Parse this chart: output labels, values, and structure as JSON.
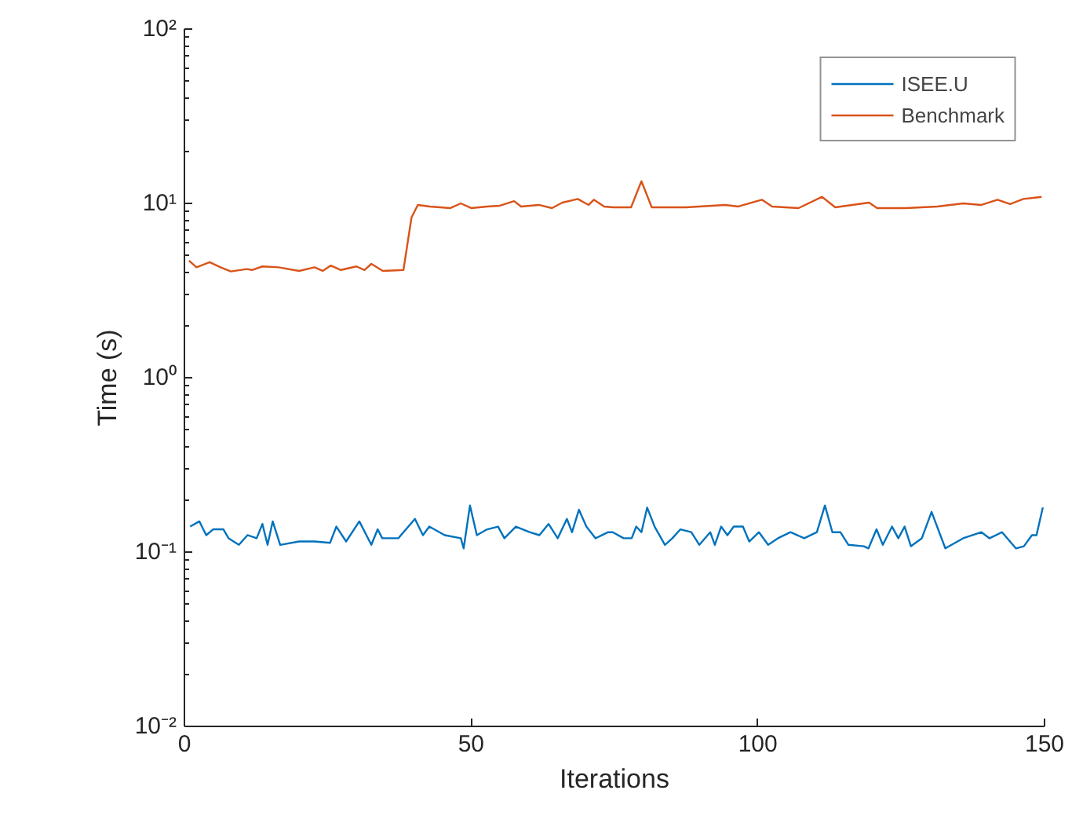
{
  "chart_data": {
    "type": "line",
    "xlabel": "Iterations",
    "ylabel": "Time (s)",
    "log": "y",
    "grid": false,
    "legend": "top right",
    "marker": "none",
    "line_style": "solid",
    "xlim": [
      0,
      150
    ],
    "xticks": [
      0,
      50,
      100,
      150
    ],
    "ylim": [
      0.01,
      100
    ],
    "yticks": [
      {
        "value": 0.01,
        "label": "10⁻²"
      },
      {
        "value": 0.1,
        "label": "10⁻¹"
      },
      {
        "value": 1,
        "label": "10⁰"
      },
      {
        "value": 10,
        "label": "10¹"
      },
      {
        "value": 100,
        "label": "10²"
      }
    ],
    "series": [
      {
        "name": "ISEE.U",
        "color": "#0072bd",
        "x": [
          1,
          2.6,
          3.8,
          5,
          6.8,
          7.7,
          9.5,
          11,
          12.6,
          13.6,
          14.5,
          15.4,
          16.7,
          20,
          22.7,
          25.4,
          26.5,
          28.2,
          30.5,
          32.6,
          33.7,
          34.5,
          37.3,
          40.2,
          41.6,
          42.7,
          45.4,
          48.2,
          48.7,
          49.8,
          51,
          52.8,
          54.7,
          55.8,
          57.8,
          60.2,
          61.9,
          63.5,
          65.1,
          66.7,
          67.6,
          68.8,
          70.1,
          71.7,
          73.9,
          74.7,
          76.6,
          78,
          78.8,
          79.7,
          80.7,
          82,
          83.8,
          85.1,
          86.5,
          88.4,
          89.8,
          91.7,
          92.5,
          93.6,
          94.7,
          95.8,
          97.4,
          98.5,
          100.2,
          101.8,
          103.5,
          105.7,
          108.1,
          110.3,
          111.7,
          113,
          114.4,
          115.8,
          118.5,
          119.3,
          120.7,
          121.8,
          123.4,
          124.5,
          125.6,
          126.7,
          128.6,
          130.3,
          132.7,
          135.8,
          139,
          140.4,
          142.6,
          145,
          146.4,
          147.8,
          148.6,
          149.7
        ],
        "values": [
          0.14,
          0.15,
          0.125,
          0.135,
          0.135,
          0.12,
          0.11,
          0.125,
          0.12,
          0.145,
          0.11,
          0.15,
          0.11,
          0.115,
          0.115,
          0.113,
          0.14,
          0.115,
          0.15,
          0.11,
          0.135,
          0.12,
          0.12,
          0.155,
          0.125,
          0.14,
          0.125,
          0.12,
          0.105,
          0.185,
          0.125,
          0.135,
          0.14,
          0.12,
          0.14,
          0.13,
          0.125,
          0.145,
          0.12,
          0.155,
          0.13,
          0.175,
          0.14,
          0.12,
          0.13,
          0.13,
          0.12,
          0.12,
          0.14,
          0.13,
          0.18,
          0.14,
          0.11,
          0.12,
          0.135,
          0.13,
          0.11,
          0.13,
          0.11,
          0.14,
          0.125,
          0.14,
          0.14,
          0.115,
          0.13,
          0.11,
          0.12,
          0.13,
          0.12,
          0.13,
          0.185,
          0.13,
          0.13,
          0.11,
          0.108,
          0.105,
          0.135,
          0.11,
          0.14,
          0.12,
          0.14,
          0.108,
          0.12,
          0.17,
          0.105,
          0.12,
          0.13,
          0.12,
          0.13,
          0.105,
          0.108,
          0.125,
          0.125,
          0.18
        ]
      },
      {
        "name": "Benchmark",
        "color": "#d95319",
        "x": [
          0.8,
          2.1,
          4.4,
          6.3,
          8.1,
          10.9,
          11.8,
          13.6,
          16.4,
          20,
          22.7,
          24.1,
          25.5,
          27.3,
          30,
          31.4,
          32.6,
          34.6,
          38.2,
          39.6,
          40.7,
          42.8,
          46.4,
          48.2,
          50,
          52.8,
          55,
          57.5,
          58.7,
          61.8,
          64.1,
          65.9,
          68.6,
          70.5,
          71.4,
          73.2,
          74.7,
          77.9,
          79.7,
          81.5,
          87.5,
          94.3,
          96.6,
          100.7,
          102.5,
          107.1,
          111.2,
          113.5,
          119.4,
          120.8,
          125.8,
          131.3,
          135.8,
          139,
          141.8,
          144,
          146.3,
          149.5
        ],
        "values": [
          4.7,
          4.3,
          4.6,
          4.3,
          4.07,
          4.2,
          4.15,
          4.35,
          4.3,
          4.1,
          4.3,
          4.1,
          4.4,
          4.15,
          4.35,
          4.15,
          4.5,
          4.1,
          4.15,
          8.3,
          9.8,
          9.6,
          9.4,
          10.0,
          9.4,
          9.6,
          9.7,
          10.3,
          9.6,
          9.8,
          9.4,
          10.1,
          10.6,
          9.8,
          10.5,
          9.6,
          9.5,
          9.5,
          13.4,
          9.5,
          9.5,
          9.8,
          9.6,
          10.5,
          9.6,
          9.4,
          10.9,
          9.5,
          10.1,
          9.4,
          9.4,
          9.6,
          10.0,
          9.8,
          10.5,
          9.9,
          10.6,
          10.9
        ]
      }
    ]
  }
}
